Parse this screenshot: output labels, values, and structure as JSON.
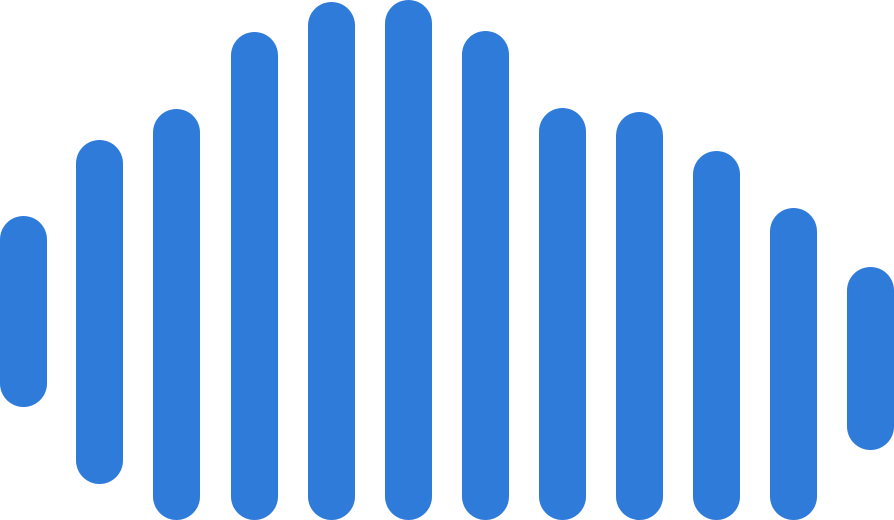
{
  "graphic": {
    "icon": "sound-wave-icon",
    "bar_color": "#2F7BDA",
    "bar_count": 12
  }
}
